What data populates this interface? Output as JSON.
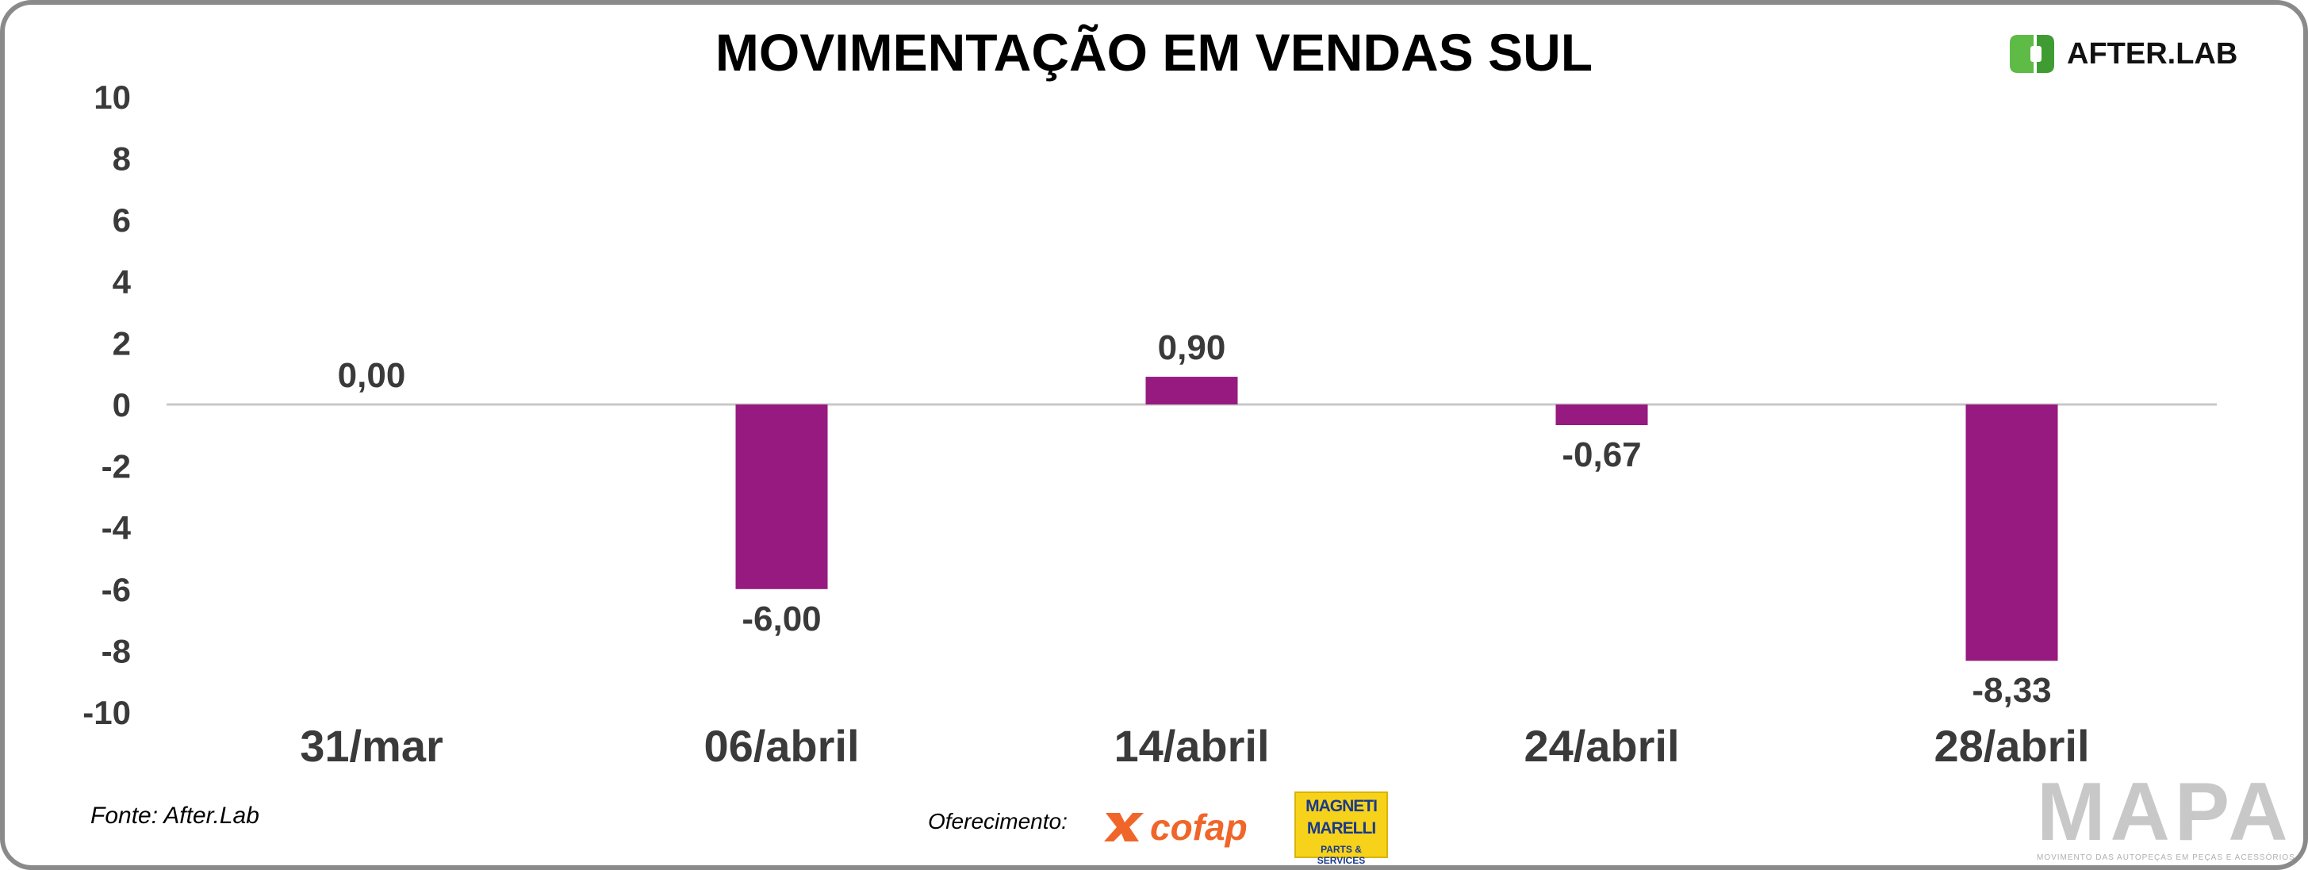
{
  "title": "MOVIMENTAÇÃO EM VENDAS SUL",
  "source": "Fonte: After.Lab",
  "sponsor_label": "Oferecimento:",
  "logos": {
    "afterlab": "AFTER.LAB",
    "cofap": "cofap",
    "magneti_line1": "MAGNETI",
    "magneti_line2": "MARELLI",
    "magneti_line3": "PARTS & SERVICES",
    "mapa": "MAPA",
    "mapa_tagline": "MOVIMENTO DAS AUTOPEÇAS EM PEÇAS E ACESSÓRIOS"
  },
  "colors": {
    "bar": "#961a7f",
    "axis_line": "#c8c8c8",
    "frame": "#8a8a8a",
    "afterlab_green": "#5dbb46"
  },
  "chart_data": {
    "type": "bar",
    "title": "MOVIMENTAÇÃO EM VENDAS SUL",
    "categories": [
      "31/mar",
      "06/abril",
      "14/abril",
      "24/abril",
      "28/abril"
    ],
    "values": [
      0.0,
      -6.0,
      0.9,
      -0.67,
      -8.33
    ],
    "data_labels": [
      "0,00",
      "-6,00",
      "0,90",
      "-0,67",
      "-8,33"
    ],
    "ylim": [
      -10,
      10
    ],
    "yticks": [
      "10",
      "8",
      "6",
      "4",
      "2",
      "0",
      "-2",
      "-4",
      "-6",
      "-8",
      "-10"
    ],
    "grid": false,
    "legend": "none"
  }
}
